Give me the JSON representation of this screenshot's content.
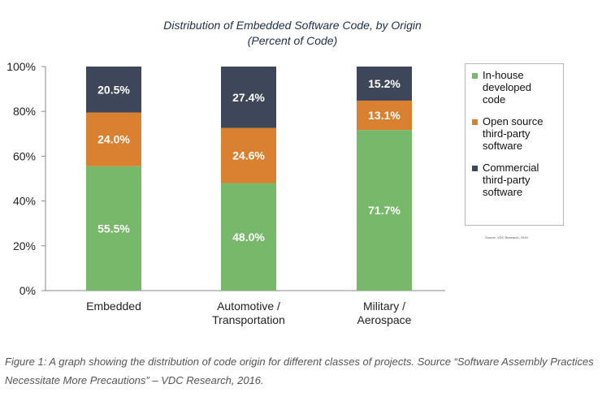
{
  "chart_data": {
    "type": "bar",
    "stacked": true,
    "title": "Distribution of Embedded Software Code, by Origin",
    "subtitle": "(Percent of Code)",
    "categories": [
      "Embedded",
      "Automotive / Transportation",
      "Military / Aerospace"
    ],
    "series": [
      {
        "name": "In-house developed code",
        "color": "#77b86a",
        "values": [
          55.5,
          48.0,
          71.7
        ],
        "labels": [
          "55.5%",
          "48.0%",
          "71.7%"
        ]
      },
      {
        "name": "Open source third-party software",
        "color": "#d98131",
        "values": [
          24.0,
          24.6,
          13.1
        ],
        "labels": [
          "24.0%",
          "24.6%",
          "13.1%"
        ]
      },
      {
        "name": "Commercial third-party software",
        "color": "#3e4659",
        "values": [
          20.5,
          27.4,
          15.2
        ],
        "labels": [
          "20.5%",
          "27.4%",
          "15.2%"
        ]
      }
    ],
    "ylim": [
      0,
      100
    ],
    "yticks": [
      "0%",
      "20%",
      "40%",
      "60%",
      "80%",
      "100%"
    ],
    "grid": false,
    "legend": "right",
    "source": "Source: VDC Research, 2016"
  },
  "caption": "Figure 1: A graph showing the distribution of code origin for different classes of projects. Source “Software Assembly Practices Necessitate More Precautions” – VDC Research, 2016."
}
